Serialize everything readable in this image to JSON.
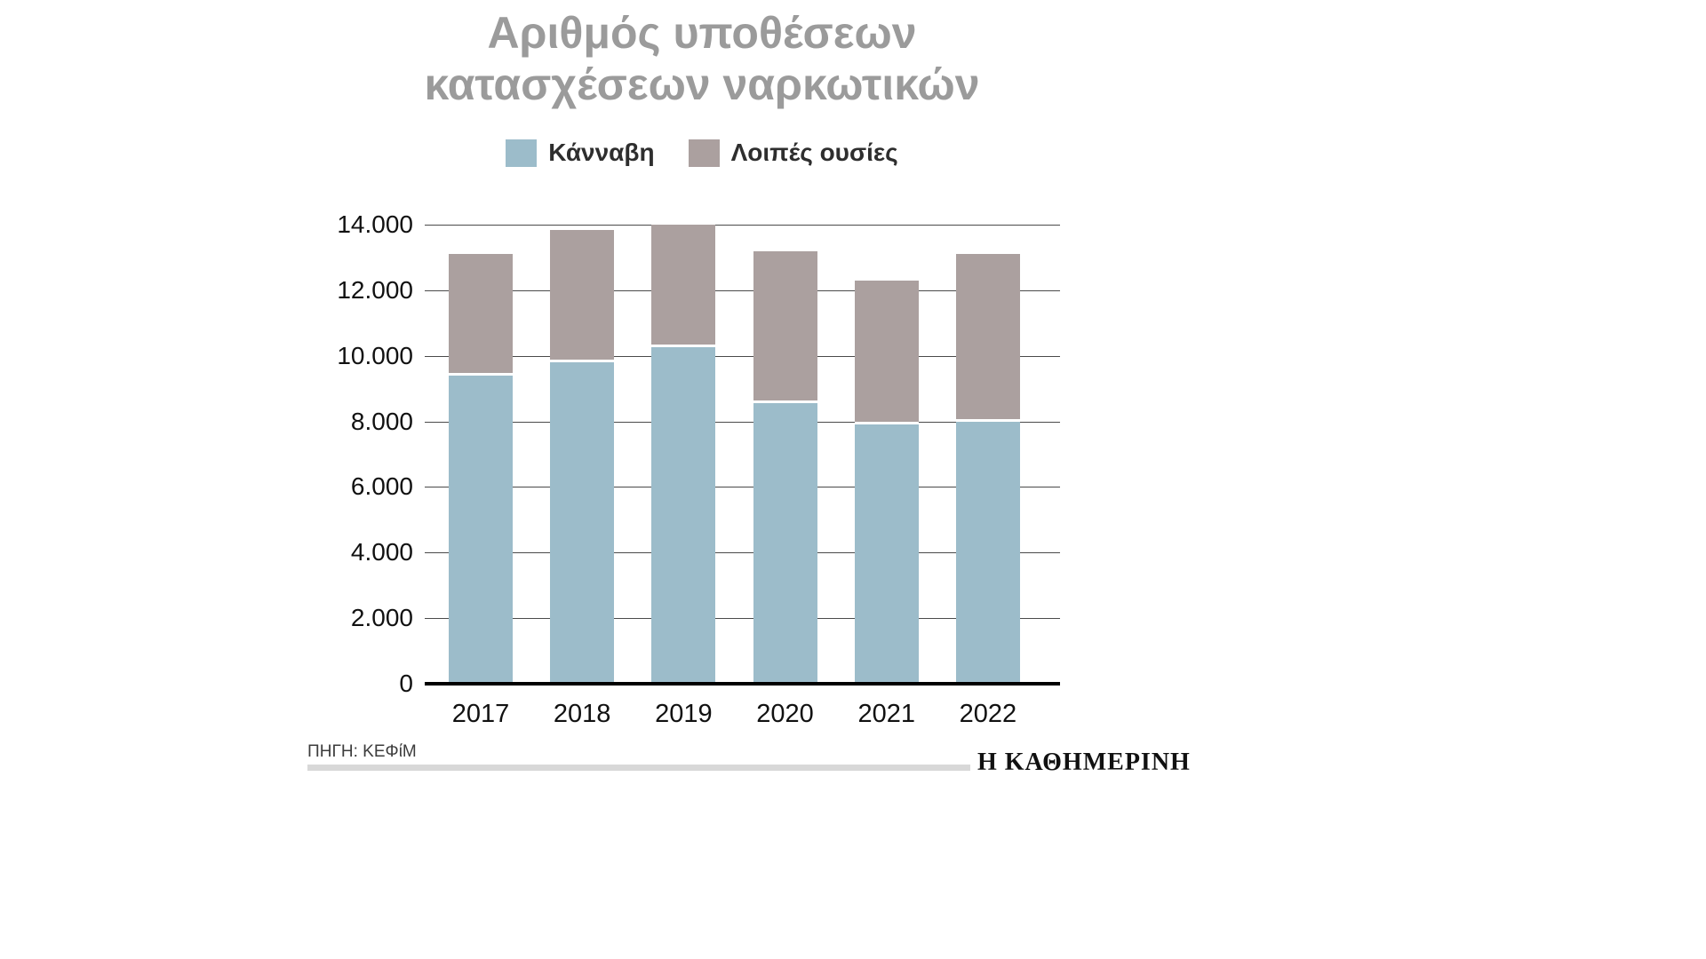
{
  "title": {
    "line1": "Αριθμός υποθέσεων",
    "line2": "κατασχέσεων ναρκωτικών"
  },
  "legend": [
    {
      "label": "Κάνναβη",
      "color": "#9cbcca"
    },
    {
      "label": "Λοιπές ουσίες",
      "color": "#aba09f"
    }
  ],
  "footer": {
    "source": "ΠΗΓΗ: ΚΕΦίΜ",
    "brand": "Η ΚΑΘΗΜΕΡΙΝΗ"
  },
  "chart_data": {
    "type": "bar",
    "stacked": true,
    "title": "Αριθμός υποθέσεων κατασχέσεων ναρκωτικών",
    "categories": [
      "2017",
      "2018",
      "2019",
      "2020",
      "2021",
      "2022"
    ],
    "series": [
      {
        "name": "Κάνναβη",
        "color": "#9cbcca",
        "values": [
          9400,
          9800,
          10250,
          8550,
          7900,
          8000
        ]
      },
      {
        "name": "Λοιπές ουσίες",
        "color": "#aba09f",
        "values": [
          3700,
          4050,
          3750,
          4650,
          4400,
          5100
        ]
      }
    ],
    "totals": [
      13100,
      13850,
      14000,
      13200,
      12300,
      13100
    ],
    "xlabel": "",
    "ylabel": "",
    "ylim": [
      0,
      14000
    ],
    "ytick_step": 2000,
    "ytick_labels": [
      "0",
      "2.000",
      "4.000",
      "6.000",
      "8.000",
      "10.000",
      "12.000",
      "14.000"
    ],
    "grid": "horizontal",
    "legend_position": "top"
  }
}
